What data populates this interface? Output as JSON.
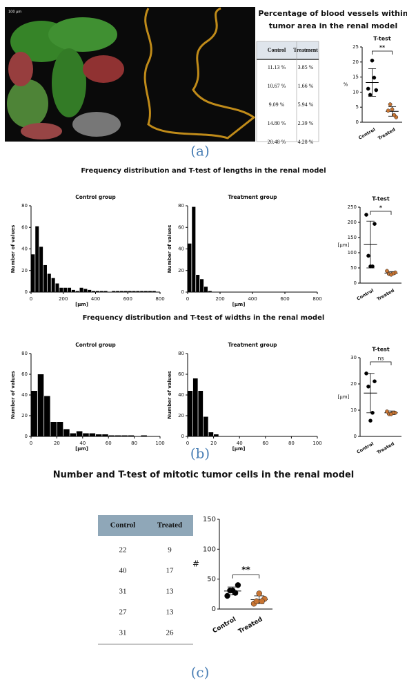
{
  "panel_a": {
    "scale_label": "100 µm",
    "title": [
      "Percentage of blood vessels within",
      "tumor area in the renal model"
    ],
    "table": {
      "header": [
        "Control",
        "Treatment"
      ],
      "rows": [
        [
          "11.13 %",
          "3.85 %"
        ],
        [
          "10.67 %",
          "1.66 %"
        ],
        [
          "9.09 %",
          "5.94 %"
        ],
        [
          "14.80 %",
          "2.39 %"
        ],
        [
          "20.48 %",
          "4.28 %"
        ]
      ]
    },
    "label": "(a)"
  },
  "panel_b": {
    "title_lengths": "Frequency distribution and T-test of lengths in the renal model",
    "title_widths": "Frequency distribution and T-test of widths in the renal model",
    "label": "(b)"
  },
  "panel_c": {
    "title": "Number and T-test of mitotic tumor cells in the renal model",
    "table": {
      "header": [
        "Control",
        "Treated"
      ],
      "rows": [
        [
          "22",
          "9"
        ],
        [
          "40",
          "17"
        ],
        [
          "31",
          "13"
        ],
        [
          "27",
          "13"
        ],
        [
          "31",
          "26"
        ]
      ]
    },
    "label": "(c)"
  },
  "chart_data": [
    {
      "type": "strip",
      "title": "T-test",
      "ylabel": "%",
      "categories": [
        "Control",
        "Treated"
      ],
      "groups": [
        {
          "values": [
            11.13,
            10.67,
            9.09,
            14.8,
            20.48
          ],
          "mean": 13.2,
          "sd": 4.6,
          "color": "#000000"
        },
        {
          "values": [
            3.85,
            1.66,
            5.94,
            2.39,
            4.28
          ],
          "mean": 3.6,
          "sd": 1.6,
          "color": "#c87533"
        }
      ],
      "significance": "**",
      "ylim": [
        0,
        25
      ],
      "yticks": [
        0,
        5,
        10,
        15,
        20,
        25
      ]
    },
    {
      "type": "histogram",
      "title": "Control group",
      "xlabel": "[µm]",
      "ylabel": "Number of values",
      "color": "#000000",
      "bins": [
        0,
        25,
        50,
        75,
        100,
        125,
        150,
        175,
        200,
        225,
        250,
        275,
        300,
        325,
        350,
        375,
        400,
        425,
        450,
        475,
        500,
        525,
        550,
        575,
        600,
        625,
        650,
        675,
        700,
        725,
        750,
        775,
        800
      ],
      "values": [
        35,
        61,
        42,
        25,
        17,
        13,
        8,
        4,
        4,
        4,
        2,
        1,
        4,
        3,
        2,
        1,
        1,
        1,
        1,
        0,
        1,
        1,
        1,
        1,
        1,
        1,
        1,
        1,
        1,
        1,
        1,
        0
      ],
      "xlim": [
        0,
        800
      ],
      "xticks": [
        0,
        200,
        400,
        600,
        800
      ],
      "ylim": [
        0,
        80
      ],
      "yticks": [
        0,
        20,
        40,
        60,
        80
      ]
    },
    {
      "type": "histogram",
      "title": "Treatment group",
      "xlabel": "[µm]",
      "ylabel": "Number of values",
      "color": "#000000",
      "bins": [
        0,
        25,
        50,
        75,
        100,
        125,
        150
      ],
      "values": [
        45,
        79,
        16,
        12,
        5,
        1
      ],
      "xlim": [
        0,
        800
      ],
      "xticks": [
        0,
        200,
        400,
        600,
        800
      ],
      "ylim": [
        0,
        80
      ],
      "yticks": [
        0,
        20,
        40,
        60,
        80
      ]
    },
    {
      "type": "strip",
      "title": "T-test",
      "ylabel": "[µm]",
      "categories": [
        "Control",
        "Treated"
      ],
      "groups": [
        {
          "values": [
            225,
            195,
            90,
            55,
            55
          ],
          "mean": 127,
          "sd": 77,
          "color": "#000000"
        },
        {
          "values": [
            40,
            35,
            30,
            32,
            28
          ],
          "mean": 33,
          "sd": 5,
          "color": "#c87533"
        }
      ],
      "significance": "*",
      "ylim": [
        0,
        250
      ],
      "yticks": [
        0,
        50,
        100,
        150,
        200,
        250
      ]
    },
    {
      "type": "histogram",
      "title": "Control group",
      "xlabel": "[µm]",
      "ylabel": "Number of values",
      "color": "#000000",
      "bins": [
        0,
        5,
        10,
        15,
        20,
        25,
        30,
        35,
        40,
        45,
        50,
        55,
        60,
        65,
        70,
        75,
        80,
        85,
        90
      ],
      "values": [
        44,
        60,
        39,
        14,
        14,
        7,
        3,
        5,
        3,
        3,
        2,
        2,
        1,
        1,
        1,
        1,
        0,
        1
      ],
      "xlim": [
        0,
        100
      ],
      "xticks": [
        0,
        20,
        40,
        60,
        80,
        100
      ],
      "ylim": [
        0,
        80
      ],
      "yticks": [
        0,
        20,
        40,
        60,
        80
      ]
    },
    {
      "type": "histogram",
      "title": "Treatment group",
      "xlabel": "[µm]",
      "ylabel": "Number of values",
      "color": "#000000",
      "bins": [
        0,
        4,
        8,
        12,
        16,
        20,
        24
      ],
      "values": [
        44,
        56,
        44,
        19,
        4,
        2
      ],
      "xlim": [
        0,
        100
      ],
      "xticks": [
        0,
        20,
        40,
        60,
        80,
        100
      ],
      "ylim": [
        0,
        80
      ],
      "yticks": [
        0,
        20,
        40,
        60,
        80
      ]
    },
    {
      "type": "strip",
      "title": "T-test",
      "ylabel": "[µm]",
      "categories": [
        "Control",
        "Treated"
      ],
      "groups": [
        {
          "values": [
            24,
            21,
            19,
            9,
            6
          ],
          "mean": 16.5,
          "sd": 7.5,
          "color": "#000000"
        },
        {
          "values": [
            9.5,
            9,
            8.5,
            9,
            8.5
          ],
          "mean": 9,
          "sd": 0.7,
          "color": "#c87533"
        }
      ],
      "significance": "ns",
      "ylim": [
        0,
        30
      ],
      "yticks": [
        0,
        10,
        20,
        30
      ]
    },
    {
      "type": "strip",
      "ylabel": "#",
      "categories": [
        "Control",
        "Treated"
      ],
      "groups": [
        {
          "values": [
            22,
            40,
            31,
            27,
            31
          ],
          "mean": 30.2,
          "sd": 6.6,
          "color": "#000000"
        },
        {
          "values": [
            9,
            17,
            13,
            13,
            26
          ],
          "mean": 15.6,
          "sd": 6.4,
          "color": "#c87533"
        }
      ],
      "significance": "**",
      "ylim": [
        0,
        150
      ],
      "yticks": [
        0,
        50,
        100,
        150
      ]
    }
  ]
}
